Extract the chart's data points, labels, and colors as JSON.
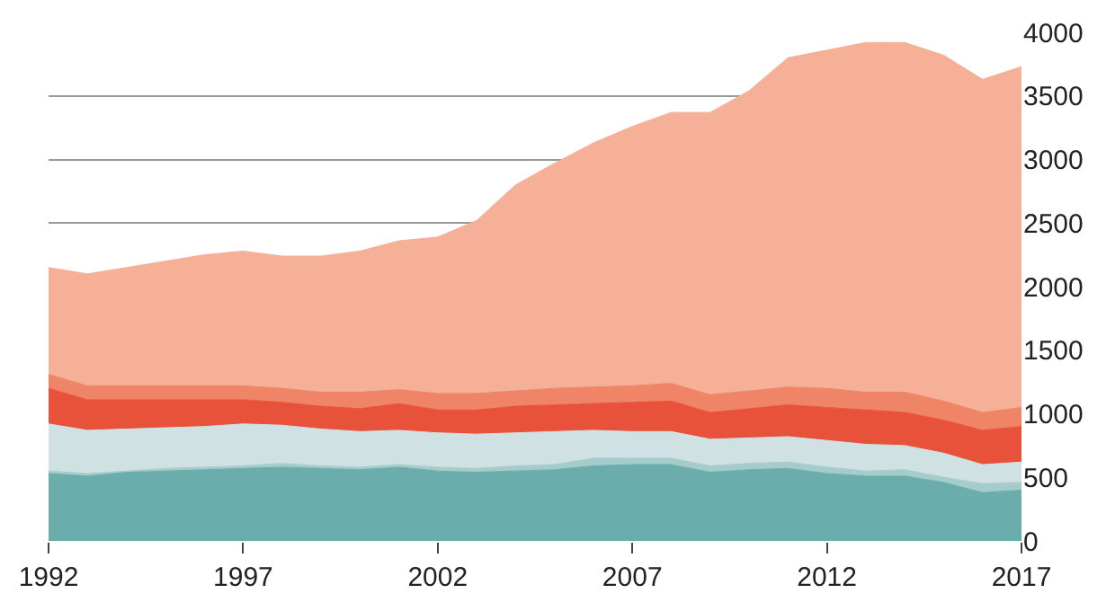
{
  "chart_data": {
    "type": "area",
    "stacked": true,
    "grid": "y",
    "x": [
      1992,
      1993,
      1994,
      1995,
      1996,
      1997,
      1998,
      1999,
      2000,
      2001,
      2002,
      2003,
      2004,
      2005,
      2006,
      2007,
      2008,
      2009,
      2010,
      2011,
      2012,
      2013,
      2014,
      2015,
      2016,
      2017
    ],
    "xlim": [
      1992,
      2017
    ],
    "xticks": [
      1992,
      1997,
      2002,
      2007,
      2012,
      2017
    ],
    "ylim": [
      0,
      4000
    ],
    "yticks": [
      0,
      500,
      1000,
      1500,
      2000,
      2500,
      3000,
      3500,
      4000
    ],
    "series": [
      {
        "color": "#6aadac",
        "values": [
          530,
          510,
          540,
          550,
          560,
          570,
          580,
          570,
          560,
          580,
          550,
          540,
          550,
          560,
          590,
          600,
          600,
          540,
          560,
          570,
          530,
          510,
          510,
          460,
          380,
          400
        ]
      },
      {
        "color": "#a3cccb",
        "values": [
          20,
          20,
          10,
          20,
          20,
          20,
          30,
          20,
          20,
          20,
          30,
          30,
          40,
          40,
          60,
          50,
          50,
          50,
          50,
          50,
          50,
          40,
          50,
          40,
          70,
          60
        ]
      },
      {
        "color": "#cfe1e3",
        "values": [
          370,
          340,
          330,
          320,
          320,
          330,
          300,
          290,
          280,
          270,
          270,
          270,
          260,
          260,
          220,
          210,
          210,
          210,
          200,
          200,
          210,
          210,
          190,
          190,
          150,
          160
        ]
      },
      {
        "color": "#e8523a",
        "values": [
          280,
          240,
          230,
          220,
          210,
          190,
          180,
          180,
          180,
          210,
          180,
          190,
          210,
          210,
          210,
          230,
          240,
          210,
          230,
          250,
          260,
          270,
          260,
          260,
          270,
          280
        ]
      },
      {
        "color": "#ef8466",
        "values": [
          110,
          110,
          110,
          110,
          110,
          110,
          110,
          110,
          130,
          110,
          130,
          130,
          120,
          130,
          130,
          130,
          140,
          140,
          140,
          140,
          150,
          140,
          160,
          150,
          140,
          150
        ]
      },
      {
        "color": "#f5b097",
        "values": [
          840,
          880,
          930,
          980,
          1030,
          1060,
          1040,
          1070,
          1110,
          1170,
          1230,
          1360,
          1620,
          1770,
          1920,
          2040,
          2130,
          2220,
          2360,
          2590,
          2660,
          2750,
          2750,
          2720,
          2620,
          2680
        ]
      }
    ]
  }
}
